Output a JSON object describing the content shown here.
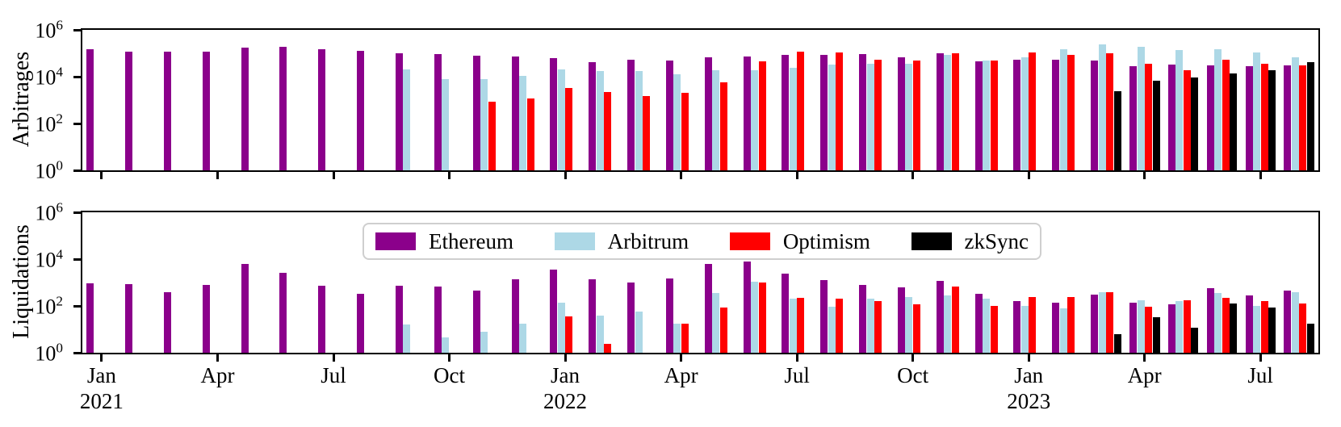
{
  "legend": {
    "items": [
      {
        "label": "Ethereum",
        "color": "#8b008b"
      },
      {
        "label": "Arbitrum",
        "color": "#add8e6"
      },
      {
        "label": "Optimism",
        "color": "#ff0000"
      },
      {
        "label": "zkSync",
        "color": "#000000"
      }
    ]
  },
  "chart_data": [
    {
      "type": "bar",
      "ylabel": "Arbitrages",
      "yscale": "log",
      "ylim": [
        1,
        1000000
      ],
      "yticks": [
        "10^0",
        "10^2",
        "10^4",
        "10^6"
      ],
      "grid": false,
      "show_xtick_labels": false,
      "categories": [
        "Jan 2021",
        "Feb 2021",
        "Mar 2021",
        "Apr 2021",
        "May 2021",
        "Jun 2021",
        "Jul 2021",
        "Aug 2021",
        "Sep 2021",
        "Oct 2021",
        "Nov 2021",
        "Dec 2021",
        "Jan 2022",
        "Feb 2022",
        "Mar 2022",
        "Apr 2022",
        "May 2022",
        "Jun 2022",
        "Jul 2022",
        "Aug 2022",
        "Sep 2022",
        "Oct 2022",
        "Nov 2022",
        "Dec 2022",
        "Jan 2023",
        "Feb 2023",
        "Mar 2023",
        "Apr 2023",
        "May 2023",
        "Jun 2023",
        "Jul 2023",
        "Aug 2023"
      ],
      "xticks": [
        {
          "index": 0,
          "label": "Jan",
          "year": "2021"
        },
        {
          "index": 3,
          "label": "Apr"
        },
        {
          "index": 6,
          "label": "Jul"
        },
        {
          "index": 9,
          "label": "Oct"
        },
        {
          "index": 12,
          "label": "Jan",
          "year": "2022"
        },
        {
          "index": 15,
          "label": "Apr"
        },
        {
          "index": 18,
          "label": "Jul"
        },
        {
          "index": 21,
          "label": "Oct"
        },
        {
          "index": 24,
          "label": "Jan",
          "year": "2023"
        },
        {
          "index": 27,
          "label": "Apr"
        },
        {
          "index": 30,
          "label": "Jul"
        }
      ],
      "series": [
        {
          "name": "Ethereum",
          "color": "#8b008b",
          "values": [
            150000,
            115000,
            115000,
            115000,
            170000,
            190000,
            145000,
            125000,
            100000,
            90000,
            82000,
            76000,
            60000,
            42000,
            55000,
            48000,
            70000,
            75000,
            87000,
            85000,
            93000,
            70000,
            98000,
            46000,
            54000,
            55000,
            50000,
            29000,
            32000,
            31000,
            29000,
            30000
          ]
        },
        {
          "name": "Arbitrum",
          "color": "#add8e6",
          "values": [
            null,
            null,
            null,
            null,
            null,
            null,
            null,
            null,
            20000,
            8000,
            8200,
            11000,
            21000,
            18000,
            17000,
            13000,
            19000,
            19000,
            24000,
            32000,
            37000,
            35000,
            83000,
            51000,
            65000,
            155000,
            240000,
            190000,
            135000,
            145000,
            105000,
            70000
          ]
        },
        {
          "name": "Optimism",
          "color": "#ff0000",
          "values": [
            null,
            null,
            null,
            null,
            null,
            null,
            null,
            null,
            null,
            null,
            850,
            1200,
            3400,
            2200,
            1500,
            2100,
            5600,
            46000,
            120000,
            110000,
            54000,
            48000,
            98000,
            48000,
            110000,
            85000,
            100000,
            37000,
            19000,
            55000,
            37000,
            31000
          ]
        },
        {
          "name": "zkSync",
          "color": "#000000",
          "values": [
            null,
            null,
            null,
            null,
            null,
            null,
            null,
            null,
            null,
            null,
            null,
            null,
            null,
            null,
            null,
            null,
            null,
            null,
            null,
            null,
            null,
            null,
            null,
            null,
            null,
            null,
            2500,
            7000,
            9000,
            14000,
            19000,
            43000
          ]
        }
      ]
    },
    {
      "type": "bar",
      "ylabel": "Liquidations",
      "yscale": "log",
      "ylim": [
        1,
        1000000
      ],
      "yticks": [
        "10^0",
        "10^2",
        "10^4",
        "10^6"
      ],
      "grid": false,
      "show_xtick_labels": true,
      "categories": [
        "Jan 2021",
        "Feb 2021",
        "Mar 2021",
        "Apr 2021",
        "May 2021",
        "Jun 2021",
        "Jul 2021",
        "Aug 2021",
        "Sep 2021",
        "Oct 2021",
        "Nov 2021",
        "Dec 2021",
        "Jan 2022",
        "Feb 2022",
        "Mar 2022",
        "Apr 2022",
        "May 2022",
        "Jun 2022",
        "Jul 2022",
        "Aug 2022",
        "Sep 2022",
        "Oct 2022",
        "Nov 2022",
        "Dec 2022",
        "Jan 2023",
        "Feb 2023",
        "Mar 2023",
        "Apr 2023",
        "May 2023",
        "Jun 2023",
        "Jul 2023",
        "Aug 2023"
      ],
      "xticks": [
        {
          "index": 0,
          "label": "Jan",
          "year": "2021"
        },
        {
          "index": 3,
          "label": "Apr"
        },
        {
          "index": 6,
          "label": "Jul"
        },
        {
          "index": 9,
          "label": "Oct"
        },
        {
          "index": 12,
          "label": "Jan",
          "year": "2022"
        },
        {
          "index": 15,
          "label": "Apr"
        },
        {
          "index": 18,
          "label": "Jul"
        },
        {
          "index": 21,
          "label": "Oct"
        },
        {
          "index": 24,
          "label": "Jan",
          "year": "2023"
        },
        {
          "index": 27,
          "label": "Apr"
        },
        {
          "index": 30,
          "label": "Jul"
        }
      ],
      "series": [
        {
          "name": "Ethereum",
          "color": "#8b008b",
          "values": [
            930,
            860,
            390,
            790,
            6200,
            2600,
            760,
            340,
            740,
            690,
            470,
            1400,
            3700,
            1400,
            1000,
            1500,
            6000,
            8000,
            2500,
            1300,
            780,
            600,
            1200,
            330,
            160,
            140,
            300,
            140,
            120,
            560,
            280,
            470
          ]
        },
        {
          "name": "Arbitrum",
          "color": "#add8e6",
          "values": [
            null,
            null,
            null,
            null,
            null,
            null,
            null,
            null,
            16,
            4.5,
            8,
            18,
            140,
            40,
            58,
            18,
            360,
            1100,
            210,
            90,
            210,
            250,
            280,
            200,
            100,
            80,
            400,
            180,
            160,
            360,
            98,
            390
          ]
        },
        {
          "name": "Optimism",
          "color": "#ff0000",
          "values": [
            null,
            null,
            null,
            null,
            null,
            null,
            null,
            null,
            null,
            null,
            null,
            null,
            35,
            2.5,
            null,
            18,
            85,
            1000,
            230,
            210,
            160,
            120,
            690,
            100,
            240,
            250,
            390,
            90,
            180,
            230,
            160,
            130
          ]
        },
        {
          "name": "zkSync",
          "color": "#000000",
          "values": [
            null,
            null,
            null,
            null,
            null,
            null,
            null,
            null,
            null,
            null,
            null,
            null,
            null,
            null,
            null,
            null,
            null,
            null,
            null,
            null,
            null,
            null,
            null,
            null,
            null,
            null,
            6,
            34,
            12,
            130,
            85,
            18
          ]
        }
      ]
    }
  ]
}
